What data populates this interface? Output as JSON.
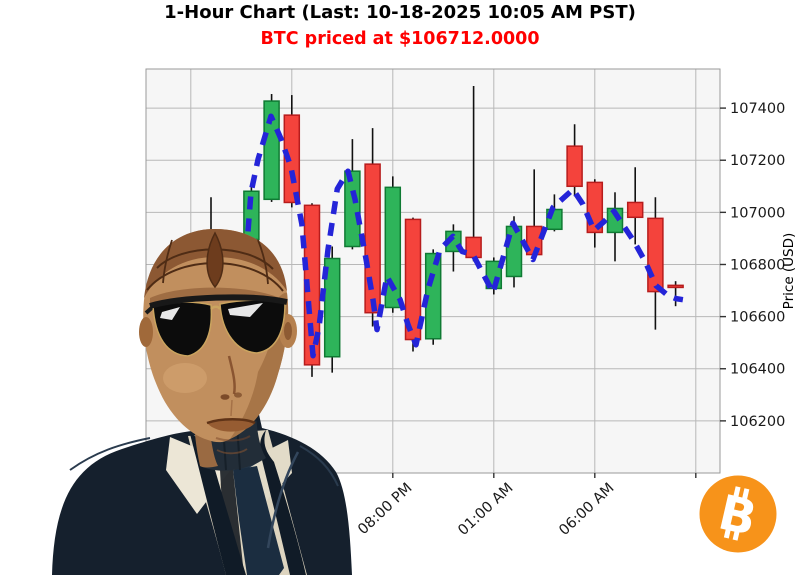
{
  "header": {
    "title": "1-Hour Chart (Last: 10-18-2025 10:05 AM PST)",
    "subtitle": "BTC priced at $106712.0000",
    "subtitle_color": "#ff0000"
  },
  "axis": {
    "ylabel": "Price (USD)",
    "y_ticks": [
      107400,
      107200,
      107000,
      106800,
      106600,
      106400,
      106200
    ],
    "x_ticks_visible": [
      {
        "label": "08:00 PM",
        "slot": 10
      },
      {
        "label": "01:00 AM",
        "slot": 15
      },
      {
        "label": "06:00 AM",
        "slot": 20
      }
    ],
    "x_gridline_slots": [
      0,
      5,
      10,
      15,
      20,
      25
    ],
    "x_slot_zero_time": "10:00 AM"
  },
  "chart_data": {
    "type": "candlestick",
    "interval": "1 hour",
    "ylim": [
      106000,
      107550
    ],
    "grid": true,
    "legend": "none",
    "candles": [
      {
        "slot": 1,
        "time": "11:00 AM",
        "open": 106930,
        "high": 107058,
        "low": 106880,
        "close": 106905,
        "dir": "down",
        "occluded": true
      },
      {
        "slot": 3,
        "time": "01:00 PM",
        "open": 106896,
        "high": 107104,
        "low": 106860,
        "close": 107081,
        "dir": "up"
      },
      {
        "slot": 4,
        "time": "02:00 PM",
        "open": 107050,
        "high": 107454,
        "low": 107040,
        "close": 107427,
        "dir": "up"
      },
      {
        "slot": 5,
        "time": "03:00 PM",
        "open": 107373,
        "high": 107450,
        "low": 107019,
        "close": 107038,
        "dir": "down"
      },
      {
        "slot": 6,
        "time": "04:00 PM",
        "open": 107027,
        "high": 107035,
        "low": 106369,
        "close": 106415,
        "dir": "down"
      },
      {
        "slot": 7,
        "time": "05:00 PM",
        "open": 106446,
        "high": 106869,
        "low": 106385,
        "close": 106823,
        "dir": "up"
      },
      {
        "slot": 8,
        "time": "06:00 PM",
        "open": 106869,
        "high": 107281,
        "low": 106858,
        "close": 107158,
        "dir": "up"
      },
      {
        "slot": 9,
        "time": "07:00 PM",
        "open": 107185,
        "high": 107323,
        "low": 106562,
        "close": 106615,
        "dir": "down"
      },
      {
        "slot": 10,
        "time": "08:00 PM",
        "open": 106635,
        "high": 107138,
        "low": 106615,
        "close": 107096,
        "dir": "up"
      },
      {
        "slot": 11,
        "time": "09:00 PM",
        "open": 106973,
        "high": 106980,
        "low": 106466,
        "close": 106512,
        "dir": "down"
      },
      {
        "slot": 12,
        "time": "10:00 PM",
        "open": 106515,
        "high": 106858,
        "low": 106492,
        "close": 106842,
        "dir": "up"
      },
      {
        "slot": 13,
        "time": "11:00 PM",
        "open": 106850,
        "high": 106954,
        "low": 106773,
        "close": 106927,
        "dir": "up"
      },
      {
        "slot": 14,
        "time": "12:00 AM",
        "open": 106904,
        "high": 107485,
        "low": 106812,
        "close": 106827,
        "dir": "down"
      },
      {
        "slot": 15,
        "time": "01:00 AM",
        "open": 106708,
        "high": 106827,
        "low": 106685,
        "close": 106812,
        "dir": "up"
      },
      {
        "slot": 16,
        "time": "02:00 AM",
        "open": 106754,
        "high": 106985,
        "low": 106712,
        "close": 106946,
        "dir": "up"
      },
      {
        "slot": 17,
        "time": "03:00 AM",
        "open": 106946,
        "high": 107165,
        "low": 106827,
        "close": 106838,
        "dir": "down"
      },
      {
        "slot": 18,
        "time": "04:00 AM",
        "open": 106935,
        "high": 107069,
        "low": 106927,
        "close": 107011,
        "dir": "up"
      },
      {
        "slot": 19,
        "time": "05:00 AM",
        "open": 107254,
        "high": 107338,
        "low": 107062,
        "close": 107100,
        "dir": "down"
      },
      {
        "slot": 20,
        "time": "06:00 AM",
        "open": 107115,
        "high": 107127,
        "low": 106865,
        "close": 106923,
        "dir": "down"
      },
      {
        "slot": 21,
        "time": "07:00 AM",
        "open": 106923,
        "high": 107077,
        "low": 106812,
        "close": 107015,
        "dir": "up"
      },
      {
        "slot": 22,
        "time": "08:00 AM",
        "open": 107038,
        "high": 107173,
        "low": 106877,
        "close": 106981,
        "dir": "down"
      },
      {
        "slot": 23,
        "time": "09:00 AM",
        "open": 106977,
        "high": 107058,
        "low": 106550,
        "close": 106696,
        "dir": "down"
      },
      {
        "slot": 24,
        "time": "10:00 AM",
        "open": 106720,
        "high": 106736,
        "low": 106640,
        "close": 106712,
        "dir": "down"
      }
    ],
    "ma_line": {
      "style": "dashed",
      "color": "#2424d8",
      "points": [
        [
          2.83,
          106927
        ],
        [
          2.98,
          107077
        ],
        [
          3.33,
          107204
        ],
        [
          3.97,
          107369
        ],
        [
          4.47,
          107281
        ],
        [
          4.96,
          107173
        ],
        [
          5.5,
          106954
        ],
        [
          6.05,
          106450
        ],
        [
          6.35,
          106561
        ],
        [
          6.79,
          106858
        ],
        [
          7.25,
          107090
        ],
        [
          7.78,
          107158
        ],
        [
          8.13,
          107050
        ],
        [
          8.68,
          106819
        ],
        [
          9.02,
          106665
        ],
        [
          9.22,
          106550
        ],
        [
          9.71,
          106754
        ],
        [
          10.36,
          106665
        ],
        [
          10.75,
          106569
        ],
        [
          11.15,
          106492
        ],
        [
          11.74,
          106704
        ],
        [
          12.34,
          106858
        ],
        [
          12.98,
          106908
        ],
        [
          13.43,
          106850
        ],
        [
          13.97,
          106838
        ],
        [
          14.96,
          106692
        ],
        [
          15.95,
          106958
        ],
        [
          16.94,
          106819
        ],
        [
          17.93,
          107019
        ],
        [
          18.92,
          107088
        ],
        [
          19.41,
          107031
        ],
        [
          19.96,
          106931
        ],
        [
          20.46,
          106965
        ],
        [
          20.95,
          107004
        ],
        [
          21.94,
          106888
        ],
        [
          22.49,
          106812
        ],
        [
          23.03,
          106719
        ],
        [
          23.62,
          106681
        ],
        [
          24.02,
          106669
        ],
        [
          24.36,
          106665
        ]
      ]
    },
    "colors": {
      "up": "#2eb45a",
      "up_edge": "#0f7a33",
      "down": "#f4433c",
      "down_edge": "#b71c1c",
      "wick": "#111111",
      "ma": "#2424d8",
      "grid": "#b8b8b8",
      "plot_bg": "#f6f6f6",
      "spine": "#999999",
      "tick": "#333333"
    }
  },
  "logo": {
    "name": "bitcoin",
    "symbol": "B",
    "background": "#f7931a",
    "glyph_color": "#ffffff"
  },
  "overlay": {
    "figure_alt": "Bald android-like man in dark navy suit, white shirt, dark tie and sunglasses"
  }
}
